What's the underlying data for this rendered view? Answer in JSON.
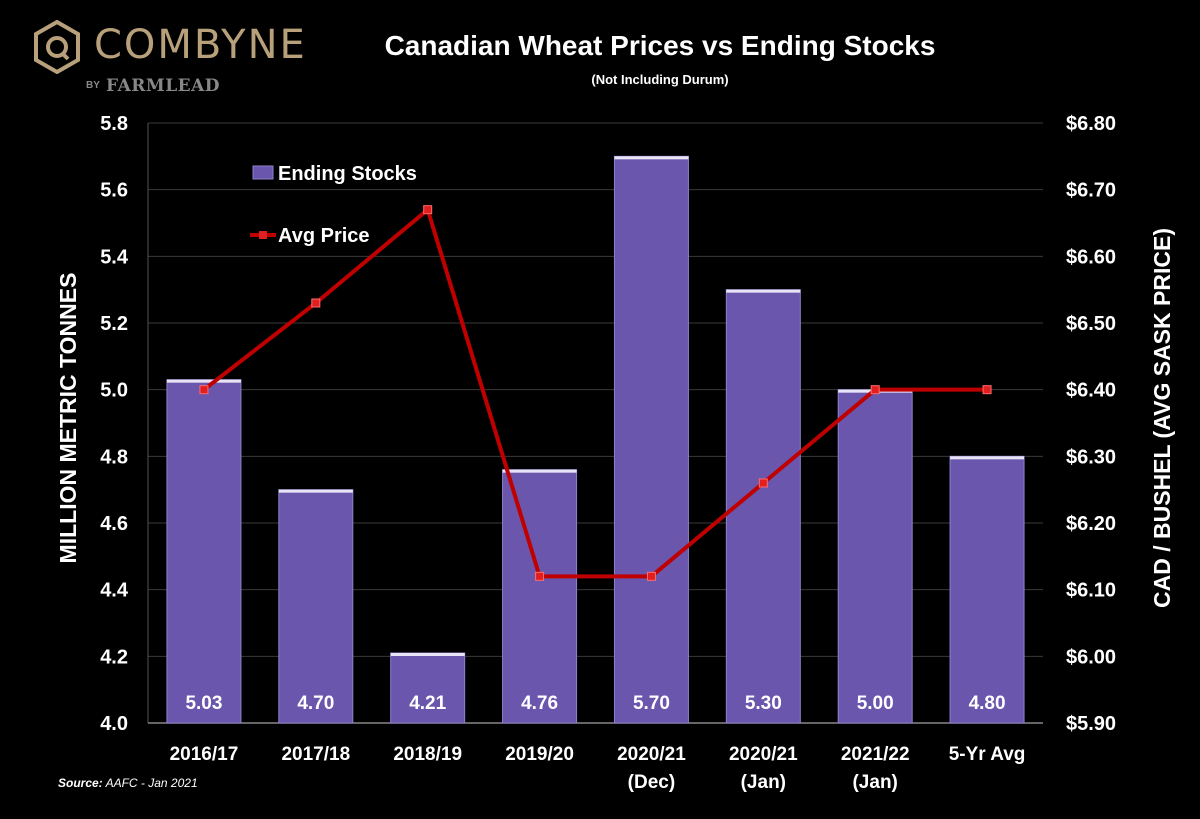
{
  "logo": {
    "name": "COMBYNE",
    "by": "BY",
    "partner": "FARMLEAD"
  },
  "title": "Canadian Wheat Prices vs Ending Stocks",
  "subtitle": "(Not Including Durum)",
  "source": {
    "label": "Source:",
    "text": "AAFC - Jan 2021"
  },
  "colors": {
    "bar": "#6a56ac",
    "bar_edge": "#8f80cc",
    "line": "#c00000",
    "background": "#000000",
    "text": "#ffffff"
  },
  "chart_data": {
    "type": "bar",
    "title": "Canadian Wheat Prices vs Ending Stocks",
    "subtitle": "(Not Including Durum)",
    "categories": [
      [
        "2016/17"
      ],
      [
        "2017/18"
      ],
      [
        "2018/19"
      ],
      [
        "2019/20"
      ],
      [
        "2020/21",
        "(Dec)"
      ],
      [
        "2020/21",
        "(Jan)"
      ],
      [
        "2021/22",
        "(Jan)"
      ],
      [
        "5-Yr Avg"
      ]
    ],
    "ylabel": "MILLION METRIC TONNES",
    "y2label": "CAD / BUSHEL (AVG SASK PRICE)",
    "ylim": [
      4.0,
      5.8
    ],
    "y2lim": [
      5.9,
      6.8
    ],
    "yticks": [
      "4.0",
      "4.2",
      "4.4",
      "4.6",
      "4.8",
      "5.0",
      "5.2",
      "5.4",
      "5.6",
      "5.8"
    ],
    "y2ticks": [
      "$5.90",
      "$6.00",
      "$6.10",
      "$6.20",
      "$6.30",
      "$6.40",
      "$6.50",
      "$6.60",
      "$6.70",
      "$6.80"
    ],
    "grid": true,
    "legend_position": "top-left",
    "series": [
      {
        "name": "Ending Stocks",
        "type": "bar",
        "axis": "left",
        "values": [
          5.03,
          4.7,
          4.21,
          4.76,
          5.7,
          5.3,
          5.0,
          4.8
        ],
        "labels": [
          "5.03",
          "4.70",
          "4.21",
          "4.76",
          "5.70",
          "5.30",
          "5.00",
          "4.80"
        ]
      },
      {
        "name": "Avg Price",
        "type": "line",
        "axis": "right",
        "values": [
          6.4,
          6.53,
          6.67,
          6.12,
          6.12,
          6.26,
          6.4,
          6.4
        ]
      }
    ]
  }
}
